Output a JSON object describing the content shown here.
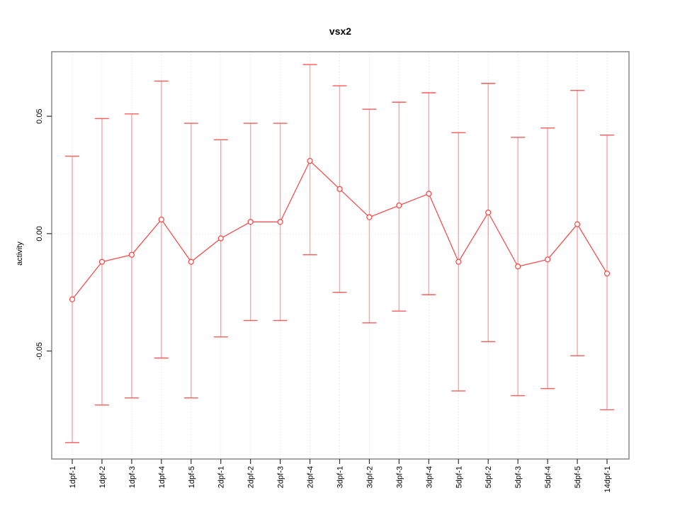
{
  "page": {
    "background": "#ffffff"
  },
  "chart_data": {
    "type": "line",
    "title": "vsx2",
    "xlabel": "",
    "ylabel": "activity",
    "categories": [
      "1dpf-1",
      "1dpf-2",
      "1dpf-3",
      "1dpf-4",
      "1dpf-5",
      "2dpf-1",
      "2dpf-2",
      "2dpf-3",
      "2dpf-4",
      "3dpf-1",
      "3dpf-2",
      "3dpf-3",
      "3dpf-4",
      "5dpf-1",
      "5dpf-2",
      "5dpf-3",
      "5dpf-4",
      "5dpf-5",
      "14dpf-1"
    ],
    "series": [
      {
        "name": "activity",
        "values": [
          -0.028,
          -0.012,
          -0.009,
          0.006,
          -0.012,
          -0.002,
          0.005,
          0.005,
          0.031,
          0.019,
          0.007,
          0.012,
          0.017,
          -0.012,
          0.009,
          -0.014,
          -0.011,
          0.004,
          -0.017
        ],
        "upper": [
          0.033,
          0.049,
          0.051,
          0.065,
          0.047,
          0.04,
          0.047,
          0.047,
          0.072,
          0.063,
          0.053,
          0.056,
          0.06,
          0.043,
          0.064,
          0.041,
          0.045,
          0.061,
          0.042
        ],
        "lower": [
          -0.089,
          -0.073,
          -0.07,
          -0.053,
          -0.07,
          -0.044,
          -0.037,
          -0.037,
          -0.009,
          -0.025,
          -0.038,
          -0.033,
          -0.026,
          -0.067,
          -0.046,
          -0.069,
          -0.066,
          -0.052,
          -0.075
        ]
      }
    ],
    "yticks": [
      0.05,
      0,
      -0.05
    ],
    "ytick_labels": [
      "0.05",
      "0.00",
      "-0.05"
    ],
    "ylim": [
      -0.096,
      0.0775
    ],
    "grid": {
      "vertical_dotted_per_category": true,
      "horizontal_dotted_at_zero": true
    },
    "legend": "none",
    "colors": {
      "line": "#ff4040",
      "point_stroke": "#ff4040",
      "point_fill": "#ffffff",
      "errorbar_stem": "#ffa3a3",
      "errorbar_cap": "#ff5a5a",
      "gridline": "#d9d9d9",
      "box_border": "#888888",
      "tick": "#333333",
      "text": "#000000"
    }
  }
}
